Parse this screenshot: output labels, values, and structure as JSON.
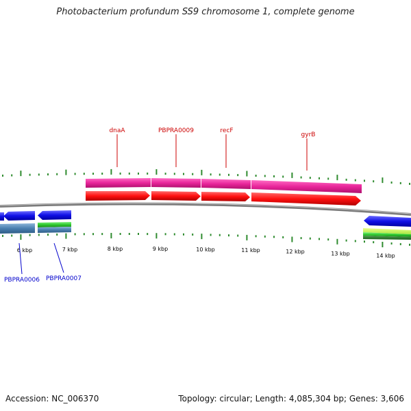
{
  "title": "Photobacterium profundum SS9 chromosome 1, complete genome",
  "footer": {
    "accession": "Accession: NC_006370",
    "summary": "Topology: circular; Length: 4,085,304 bp; Genes: 3,606"
  },
  "colors": {
    "backbone": "#7a7a7a",
    "tick": "#2e8b2e",
    "forward_cds": "#ff1010",
    "forward_gene": "#e8259a",
    "reverse_cds": "#1010e6",
    "reverse_gene": "#4a7fb0",
    "label_forward": "#cc0000",
    "label_reverse": "#0000cc"
  },
  "scale_labels": [
    "6 kbp",
    "7 kbp",
    "8 kbp",
    "9 kbp",
    "10 kbp",
    "11 kbp",
    "12 kbp",
    "13 kbp",
    "14 kbp"
  ],
  "forward_gene_labels": [
    "dnaA",
    "PBPRA0009",
    "recF",
    "gyrB"
  ],
  "reverse_gene_labels": [
    "PBPRA0006",
    "PBPRA0007"
  ]
}
